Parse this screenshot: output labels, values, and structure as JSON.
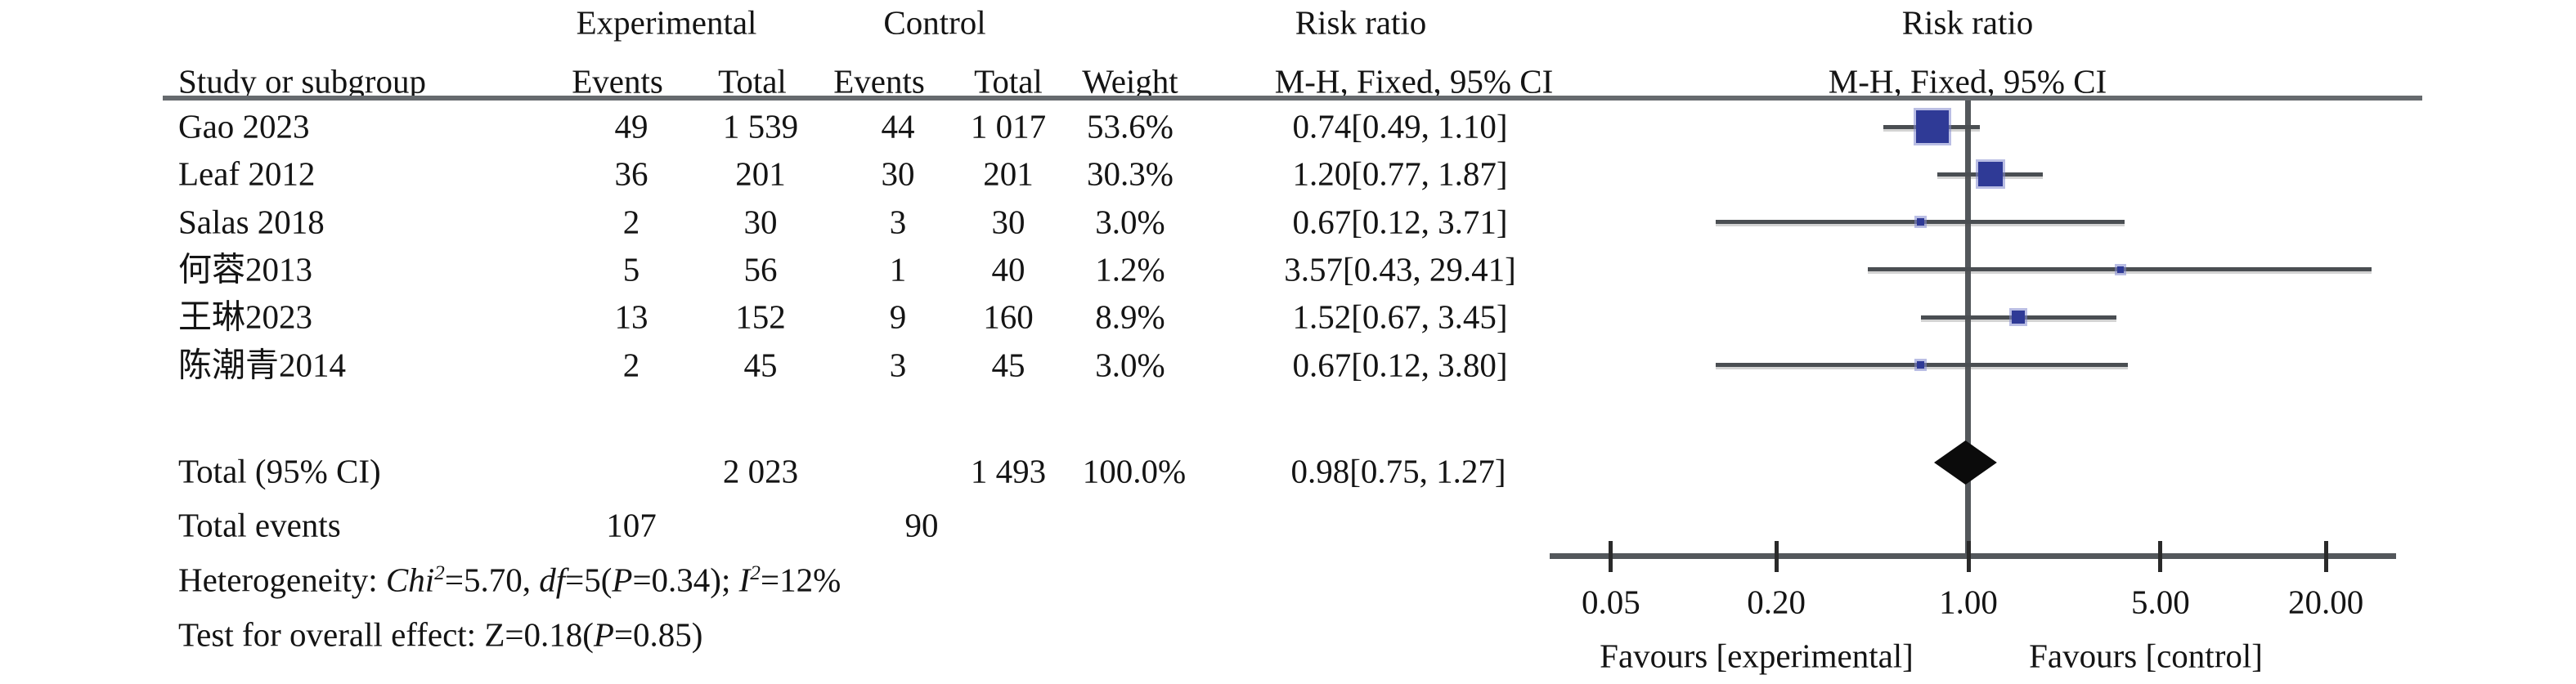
{
  "table": {
    "header_row1": {
      "experimental": "Experimental",
      "control": "Control",
      "risk_ratio_left": "Risk ratio",
      "risk_ratio_right": "Risk ratio"
    },
    "header_row2": {
      "study": "Study or subgroup",
      "exp_events": "Events",
      "exp_total": "Total",
      "ctrl_events": "Events",
      "ctrl_total": "Total",
      "weight": "Weight",
      "mh_left": "M-H, Fixed, 95% CI",
      "mh_right": "M-H, Fixed, 95% CI"
    }
  },
  "studies": [
    {
      "name": "Gao 2023",
      "exp_events": "49",
      "exp_total": "1 539",
      "ctrl_events": "44",
      "ctrl_total": "1 017",
      "weight": "53.6%",
      "rr_text": "0.74[0.49, 1.10]",
      "rr": 0.74,
      "ci_low": 0.49,
      "ci_high": 1.1,
      "weight_value": 53.6
    },
    {
      "name": "Leaf 2012",
      "exp_events": "36",
      "exp_total": "201",
      "ctrl_events": "30",
      "ctrl_total": "201",
      "weight": "30.3%",
      "rr_text": "1.20[0.77, 1.87]",
      "rr": 1.2,
      "ci_low": 0.77,
      "ci_high": 1.87,
      "weight_value": 30.3
    },
    {
      "name": "Salas 2018",
      "exp_events": "2",
      "exp_total": "30",
      "ctrl_events": "3",
      "ctrl_total": "30",
      "weight": "3.0%",
      "rr_text": "0.67[0.12, 3.71]",
      "rr": 0.67,
      "ci_low": 0.12,
      "ci_high": 3.71,
      "weight_value": 3.0
    },
    {
      "name": "何蓉2013",
      "exp_events": "5",
      "exp_total": "56",
      "ctrl_events": "1",
      "ctrl_total": "40",
      "weight": "1.2%",
      "rr_text": "3.57[0.43, 29.41]",
      "rr": 3.57,
      "ci_low": 0.43,
      "ci_high": 29.41,
      "weight_value": 1.2
    },
    {
      "name": "王琳2023",
      "exp_events": "13",
      "exp_total": "152",
      "ctrl_events": "9",
      "ctrl_total": "160",
      "weight": "8.9%",
      "rr_text": "1.52[0.67, 3.45]",
      "rr": 1.52,
      "ci_low": 0.67,
      "ci_high": 3.45,
      "weight_value": 8.9
    },
    {
      "name": "陈潮青2014",
      "exp_events": "2",
      "exp_total": "45",
      "ctrl_events": "3",
      "ctrl_total": "45",
      "weight": "3.0%",
      "rr_text": "0.67[0.12, 3.80]",
      "rr": 0.67,
      "ci_low": 0.12,
      "ci_high": 3.8,
      "weight_value": 3.0
    }
  ],
  "totals": {
    "label": "Total (95% CI)",
    "exp_total": "2 023",
    "ctrl_total": "1 493",
    "weight": "100.0%",
    "rr_text": "0.98[0.75, 1.27]",
    "rr": 0.98,
    "ci_low": 0.75,
    "ci_high": 1.27,
    "events_label": "Total events",
    "exp_events": "107",
    "ctrl_events": "90"
  },
  "stats": {
    "heterogeneity_text": "Heterogeneity: Chi2=5.70, df=5(P=0.34); I2=12%",
    "heterogeneity_segments": [
      {
        "t": "Heterogeneity: "
      },
      {
        "t": "Chi",
        "i": 1
      },
      {
        "t": "2",
        "i": 1,
        "sup": 1
      },
      {
        "t": "=5.70, "
      },
      {
        "t": "df",
        "i": 1
      },
      {
        "t": "=5("
      },
      {
        "t": "P",
        "i": 1
      },
      {
        "t": "=0.34); "
      },
      {
        "t": "I",
        "i": 1
      },
      {
        "t": "2",
        "i": 1,
        "sup": 1
      },
      {
        "t": "=12%"
      }
    ],
    "overall_effect_text": "Test for overall effect: Z=0.18(P=0.85)",
    "overall_effect_segments": [
      {
        "t": "Test for overall effect: "
      },
      {
        "t": "Z"
      },
      {
        "t": "=0.18("
      },
      {
        "t": "P",
        "i": 1
      },
      {
        "t": "=0.85)"
      }
    ]
  },
  "axis": {
    "scale": "log",
    "ticks": [
      {
        "value": 0.05,
        "label": "0.05"
      },
      {
        "value": 0.2,
        "label": "0.20"
      },
      {
        "value": 1.0,
        "label": "1.00"
      },
      {
        "value": 5.0,
        "label": "5.00"
      },
      {
        "value": 20.0,
        "label": "20.00"
      }
    ],
    "favours_left": "Favours [experimental]",
    "favours_right": "Favours [control]"
  },
  "colors": {
    "square_fill": "#2f3a96",
    "square_halo": "#8288cd",
    "ci_line": "#4a4e52",
    "axis_line": "#53575b",
    "diamond": "#0b0b0b",
    "text": "#141414"
  },
  "chart_data": {
    "type": "scatter",
    "subtype": "forest_plot",
    "title": "Risk ratio, M-H, Fixed, 95% CI forest plot",
    "x_scale": "log",
    "x_ticks": [
      0.05,
      0.2,
      1.0,
      5.0,
      20.0
    ],
    "x_tick_labels": [
      "0.05",
      "0.20",
      "1.00",
      "5.00",
      "20.00"
    ],
    "xlabel_left": "Favours [experimental]",
    "xlabel_right": "Favours [control]",
    "no_effect_line": 1.0,
    "points": [
      {
        "study": "Gao 2023",
        "rr": 0.74,
        "ci": [
          0.49,
          1.1
        ],
        "weight_pct": 53.6
      },
      {
        "study": "Leaf 2012",
        "rr": 1.2,
        "ci": [
          0.77,
          1.87
        ],
        "weight_pct": 30.3
      },
      {
        "study": "Salas 2018",
        "rr": 0.67,
        "ci": [
          0.12,
          3.71
        ],
        "weight_pct": 3.0
      },
      {
        "study": "何蓉2013",
        "rr": 3.57,
        "ci": [
          0.43,
          29.41
        ],
        "weight_pct": 1.2
      },
      {
        "study": "王琳2023",
        "rr": 1.52,
        "ci": [
          0.67,
          3.45
        ],
        "weight_pct": 8.9
      },
      {
        "study": "陈潮青2014",
        "rr": 0.67,
        "ci": [
          0.12,
          3.8
        ],
        "weight_pct": 3.0
      }
    ],
    "pooled": {
      "label": "Total (95% CI)",
      "rr": 0.98,
      "ci": [
        0.75,
        1.27
      ],
      "weight_pct": 100.0,
      "heterogeneity": "Chi2=5.70, df=5(P=0.34); I2=12%",
      "overall_effect": "Z=0.18(P=0.85)"
    }
  }
}
